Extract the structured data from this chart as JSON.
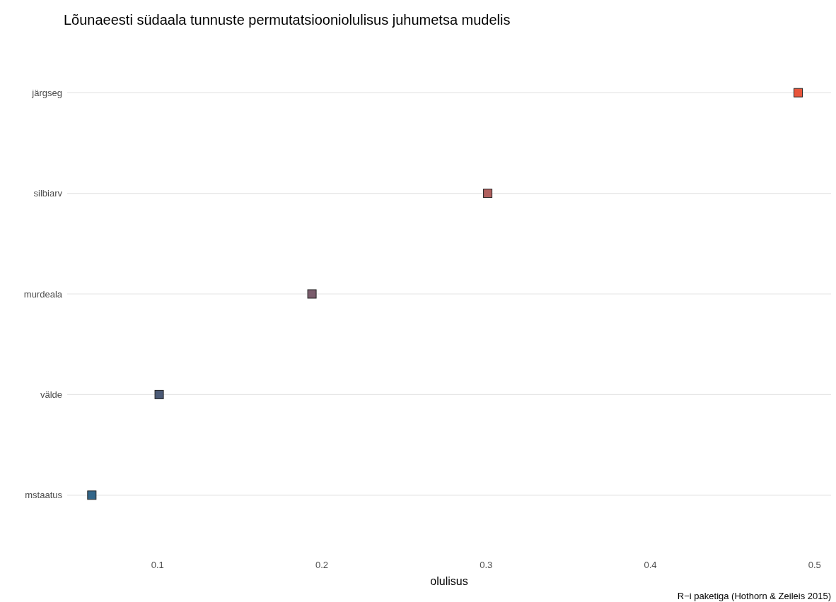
{
  "chart_data": {
    "type": "scatter",
    "orientation": "horizontal",
    "title": "Lõunaeesti südaala tunnuste permutatsiooniolulisus juhumetsa mudelis",
    "xlabel": "olulisus",
    "annotations": [
      "R−i paketiga (Hothorn & Zeileis 2015)"
    ],
    "categories": [
      "järgseg",
      "silbiarv",
      "murdeala",
      "välde",
      "mstaatus"
    ],
    "values": [
      0.49,
      0.301,
      0.194,
      0.101,
      0.06
    ],
    "colors": [
      "#e8553b",
      "#b0605e",
      "#7a5c6c",
      "#4b5a76",
      "#336689"
    ],
    "xlim": [
      0.045,
      0.51
    ],
    "xticks": [
      0.1,
      0.2,
      0.3,
      0.4,
      0.5
    ],
    "grid": "y",
    "marker": "square"
  }
}
